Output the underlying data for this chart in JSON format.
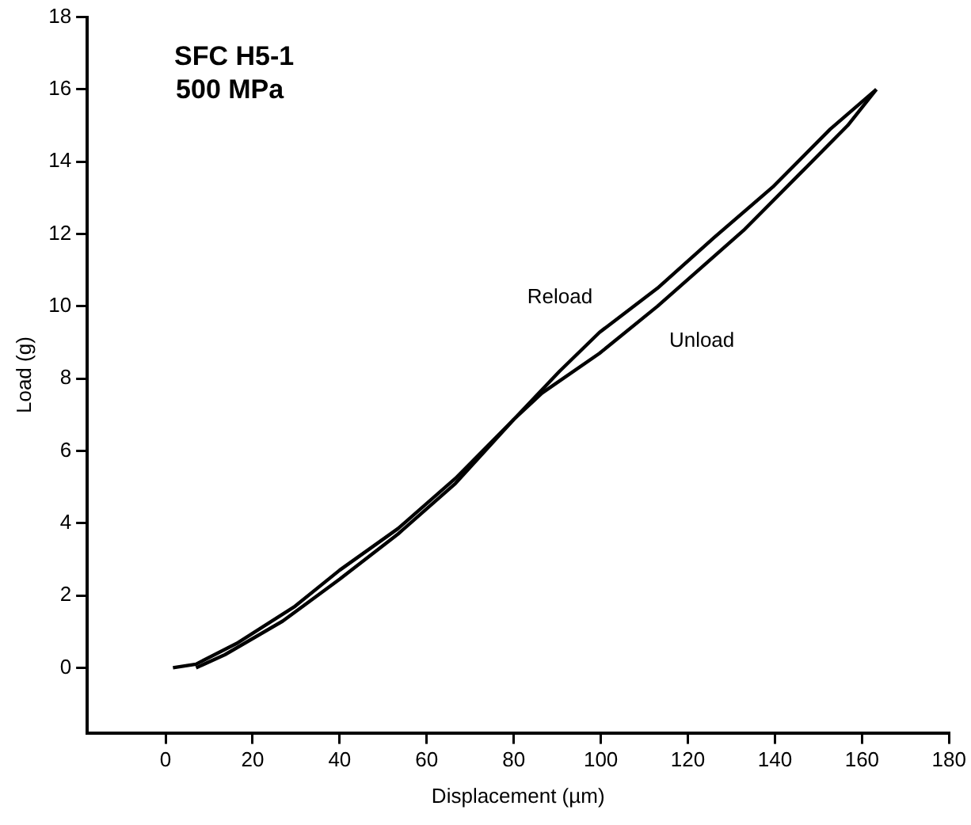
{
  "chart_data": {
    "type": "line",
    "xlabel": "Displacement (µm)",
    "ylabel": "Load (g)",
    "annotations": [
      "SFC H5-1",
      "500 MPa"
    ],
    "xlim": [
      -18,
      180
    ],
    "xticks": [
      0,
      20,
      40,
      60,
      80,
      100,
      120,
      140,
      160,
      180
    ],
    "ylim": [
      -1.8,
      18
    ],
    "yticks": [
      0,
      2,
      4,
      6,
      8,
      10,
      12,
      14,
      16,
      18
    ],
    "grid": false,
    "legend": false,
    "marker": "none",
    "line_style": "solid",
    "series": [
      {
        "name": "Reload",
        "color": "#000000",
        "x": [
          1.7,
          7,
          16.3,
          29.5,
          40,
          53.4,
          66.6,
          80,
          90.5,
          99.7,
          113,
          126,
          139.5,
          152.7,
          163.3
        ],
        "values": [
          0,
          0.1,
          0.67,
          1.68,
          2.7,
          3.85,
          5.24,
          6.87,
          8.2,
          9.28,
          10.5,
          11.9,
          13.3,
          14.9,
          16.0
        ]
      },
      {
        "name": "Unload",
        "color": "#000000",
        "x": [
          163.3,
          156.7,
          146,
          132.8,
          119.6,
          113,
          99.7,
          86.5,
          80,
          66.6,
          53.4,
          40,
          26.9,
          13.6,
          7
        ],
        "values": [
          16.0,
          15.0,
          13.7,
          12.1,
          10.7,
          10.0,
          8.7,
          7.6,
          6.87,
          5.1,
          3.7,
          2.45,
          1.29,
          0.36,
          0
        ]
      }
    ]
  }
}
